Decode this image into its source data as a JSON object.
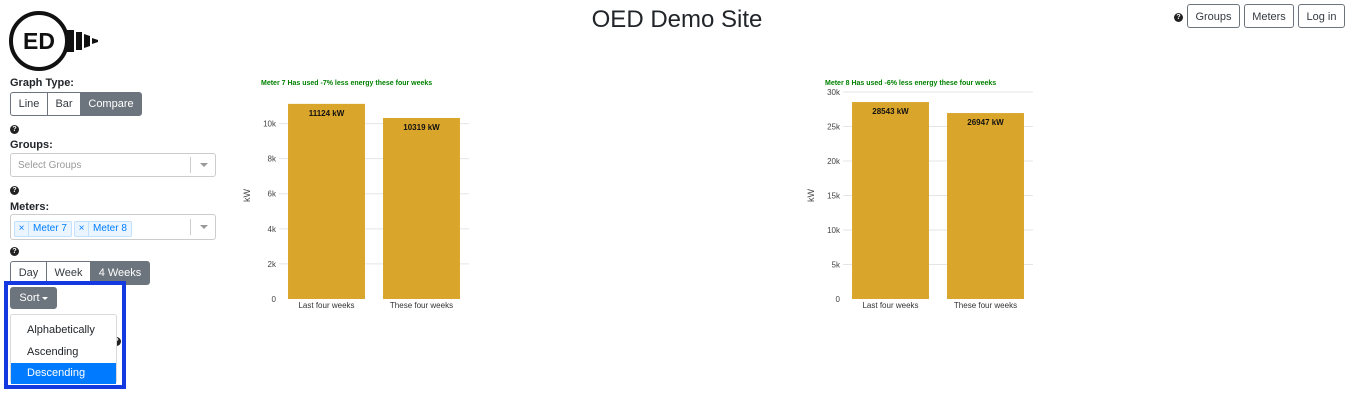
{
  "header": {
    "logo_text": "ED",
    "title": "OED Demo Site",
    "help_glyph": "?",
    "buttons": [
      "Groups",
      "Meters",
      "Log in"
    ]
  },
  "sidebar": {
    "graph_type_label": "Graph Type:",
    "graph_types": [
      "Line",
      "Bar",
      "Compare"
    ],
    "graph_type_active": "Compare",
    "groups_label": "Groups:",
    "groups_placeholder": "Select Groups",
    "meters_label": "Meters:",
    "selected_meters": [
      "Meter 7",
      "Meter 8"
    ],
    "remove_glyph": "×",
    "periods": [
      "Day",
      "Week",
      "4 Weeks"
    ],
    "period_active": "4 Weeks",
    "sort_label": "Sort",
    "sort_options": [
      "Alphabetically",
      "Ascending",
      "Descending"
    ],
    "sort_active": "Descending"
  },
  "colors": {
    "bar": "#DAA52B",
    "title_text": "#008000",
    "active_button": "#6c757d",
    "selected_option": "#007bff",
    "highlight_border": "#1439e0"
  },
  "chart_data": [
    {
      "type": "bar",
      "title": "Meter 7 Has used -7% less energy these four weeks",
      "categories": [
        "Last four weeks",
        "These four weeks"
      ],
      "values": [
        11124,
        10319
      ],
      "value_labels": [
        "11124 kW",
        "10319 kW"
      ],
      "ylabel": "kW",
      "ylim": [
        0,
        11800
      ],
      "yticks": [
        0,
        2000,
        4000,
        6000,
        8000,
        10000
      ],
      "ytick_labels": [
        "0",
        "2k",
        "4k",
        "6k",
        "8k",
        "10k"
      ],
      "grid": true
    },
    {
      "type": "bar",
      "title": "Meter 8 Has used -6% less energy these four weeks",
      "categories": [
        "Last four weeks",
        "These four weeks"
      ],
      "values": [
        28543,
        26947
      ],
      "value_labels": [
        "28543 kW",
        "26947 kW"
      ],
      "ylabel": "kW",
      "ylim": [
        0,
        30000
      ],
      "yticks": [
        0,
        5000,
        10000,
        15000,
        20000,
        25000,
        30000
      ],
      "ytick_labels": [
        "0",
        "5k",
        "10k",
        "15k",
        "20k",
        "25k",
        "30k"
      ],
      "grid": true
    }
  ]
}
